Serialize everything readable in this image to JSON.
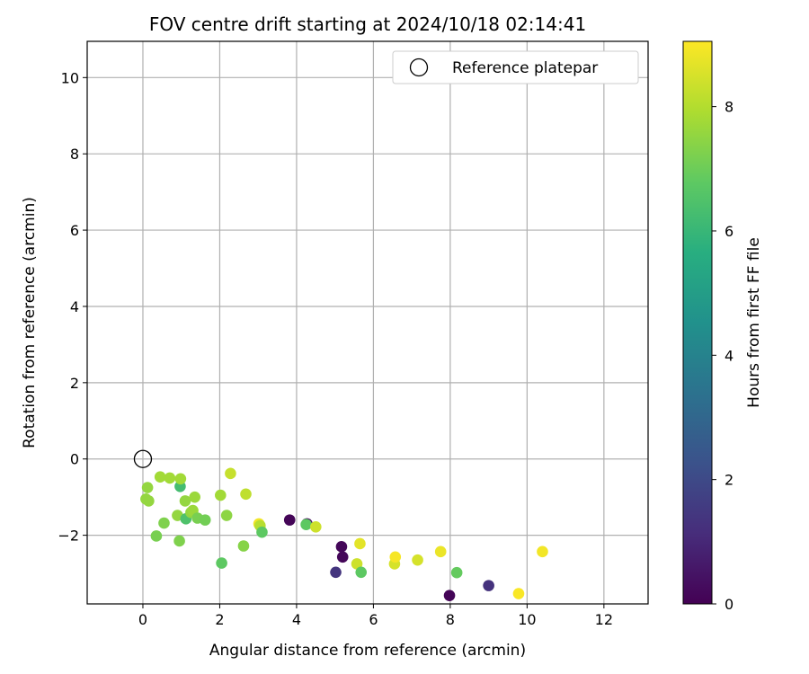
{
  "chart_data": {
    "type": "scatter",
    "title": "FOV centre drift starting at 2024/10/18 02:14:41",
    "xlabel": "Angular distance from reference (arcmin)",
    "ylabel": "Rotation from reference (arcmin)",
    "xlim": [
      -1.45,
      13.15
    ],
    "ylim": [
      -3.8,
      10.95
    ],
    "xticks": [
      0,
      2,
      4,
      6,
      8,
      10,
      12
    ],
    "yticks": [
      -2,
      0,
      2,
      4,
      6,
      8,
      10
    ],
    "grid": true,
    "legend": {
      "placement": "top-right",
      "label": "Reference platepar"
    },
    "reference_point": {
      "x": 0,
      "y": 0
    },
    "colorbar": {
      "label": "Hours from first FF file",
      "colormap": "viridis",
      "range": [
        0,
        9.05
      ],
      "ticks": [
        0,
        2,
        4,
        6,
        8
      ]
    },
    "points": [
      {
        "x": 0.08,
        "y": -1.05,
        "c": 7.6
      },
      {
        "x": 0.15,
        "y": -1.1,
        "c": 7.6
      },
      {
        "x": 0.12,
        "y": -0.75,
        "c": 7.6
      },
      {
        "x": 0.35,
        "y": -2.02,
        "c": 7.2
      },
      {
        "x": 0.45,
        "y": -0.47,
        "c": 7.8
      },
      {
        "x": 0.55,
        "y": -1.68,
        "c": 7.3
      },
      {
        "x": 0.7,
        "y": -0.5,
        "c": 7.8
      },
      {
        "x": 0.9,
        "y": -1.48,
        "c": 7.6
      },
      {
        "x": 0.97,
        "y": -0.72,
        "c": 6.3
      },
      {
        "x": 0.95,
        "y": -2.15,
        "c": 7.3
      },
      {
        "x": 0.98,
        "y": -0.52,
        "c": 7.8
      },
      {
        "x": 1.1,
        "y": -1.1,
        "c": 7.6
      },
      {
        "x": 1.12,
        "y": -1.57,
        "c": 6.5
      },
      {
        "x": 1.25,
        "y": -1.4,
        "c": 7.6
      },
      {
        "x": 1.3,
        "y": -1.35,
        "c": 7.7
      },
      {
        "x": 1.35,
        "y": -1.0,
        "c": 7.7
      },
      {
        "x": 1.42,
        "y": -1.55,
        "c": 7.2
      },
      {
        "x": 1.62,
        "y": -1.6,
        "c": 7.1
      },
      {
        "x": 2.02,
        "y": -0.95,
        "c": 7.8
      },
      {
        "x": 2.05,
        "y": -2.73,
        "c": 6.8
      },
      {
        "x": 2.18,
        "y": -1.48,
        "c": 7.5
      },
      {
        "x": 2.28,
        "y": -0.38,
        "c": 8.3
      },
      {
        "x": 2.62,
        "y": -2.28,
        "c": 7.4
      },
      {
        "x": 2.68,
        "y": -0.92,
        "c": 8.2
      },
      {
        "x": 3.02,
        "y": -1.7,
        "c": 8.9
      },
      {
        "x": 3.05,
        "y": -1.75,
        "c": 8.1
      },
      {
        "x": 3.1,
        "y": -1.92,
        "c": 6.8
      },
      {
        "x": 3.82,
        "y": -1.6,
        "c": 0.1
      },
      {
        "x": 4.27,
        "y": -1.7,
        "c": 0.3
      },
      {
        "x": 4.25,
        "y": -1.72,
        "c": 6.8
      },
      {
        "x": 4.5,
        "y": -1.78,
        "c": 8.4
      },
      {
        "x": 5.02,
        "y": -2.97,
        "c": 1.4
      },
      {
        "x": 5.17,
        "y": -2.3,
        "c": 0.15
      },
      {
        "x": 5.2,
        "y": -2.57,
        "c": 0.15
      },
      {
        "x": 5.57,
        "y": -2.75,
        "c": 8.4
      },
      {
        "x": 5.65,
        "y": -2.22,
        "c": 8.7
      },
      {
        "x": 5.68,
        "y": -2.97,
        "c": 6.8
      },
      {
        "x": 6.55,
        "y": -2.75,
        "c": 8.5
      },
      {
        "x": 6.57,
        "y": -2.57,
        "c": 8.95
      },
      {
        "x": 7.15,
        "y": -2.65,
        "c": 8.5
      },
      {
        "x": 7.75,
        "y": -2.43,
        "c": 8.8
      },
      {
        "x": 7.98,
        "y": -3.58,
        "c": 0.1
      },
      {
        "x": 8.17,
        "y": -2.98,
        "c": 6.9
      },
      {
        "x": 9.0,
        "y": -3.32,
        "c": 1.3
      },
      {
        "x": 9.78,
        "y": -3.53,
        "c": 9.0
      },
      {
        "x": 10.4,
        "y": -2.43,
        "c": 8.9
      }
    ]
  }
}
